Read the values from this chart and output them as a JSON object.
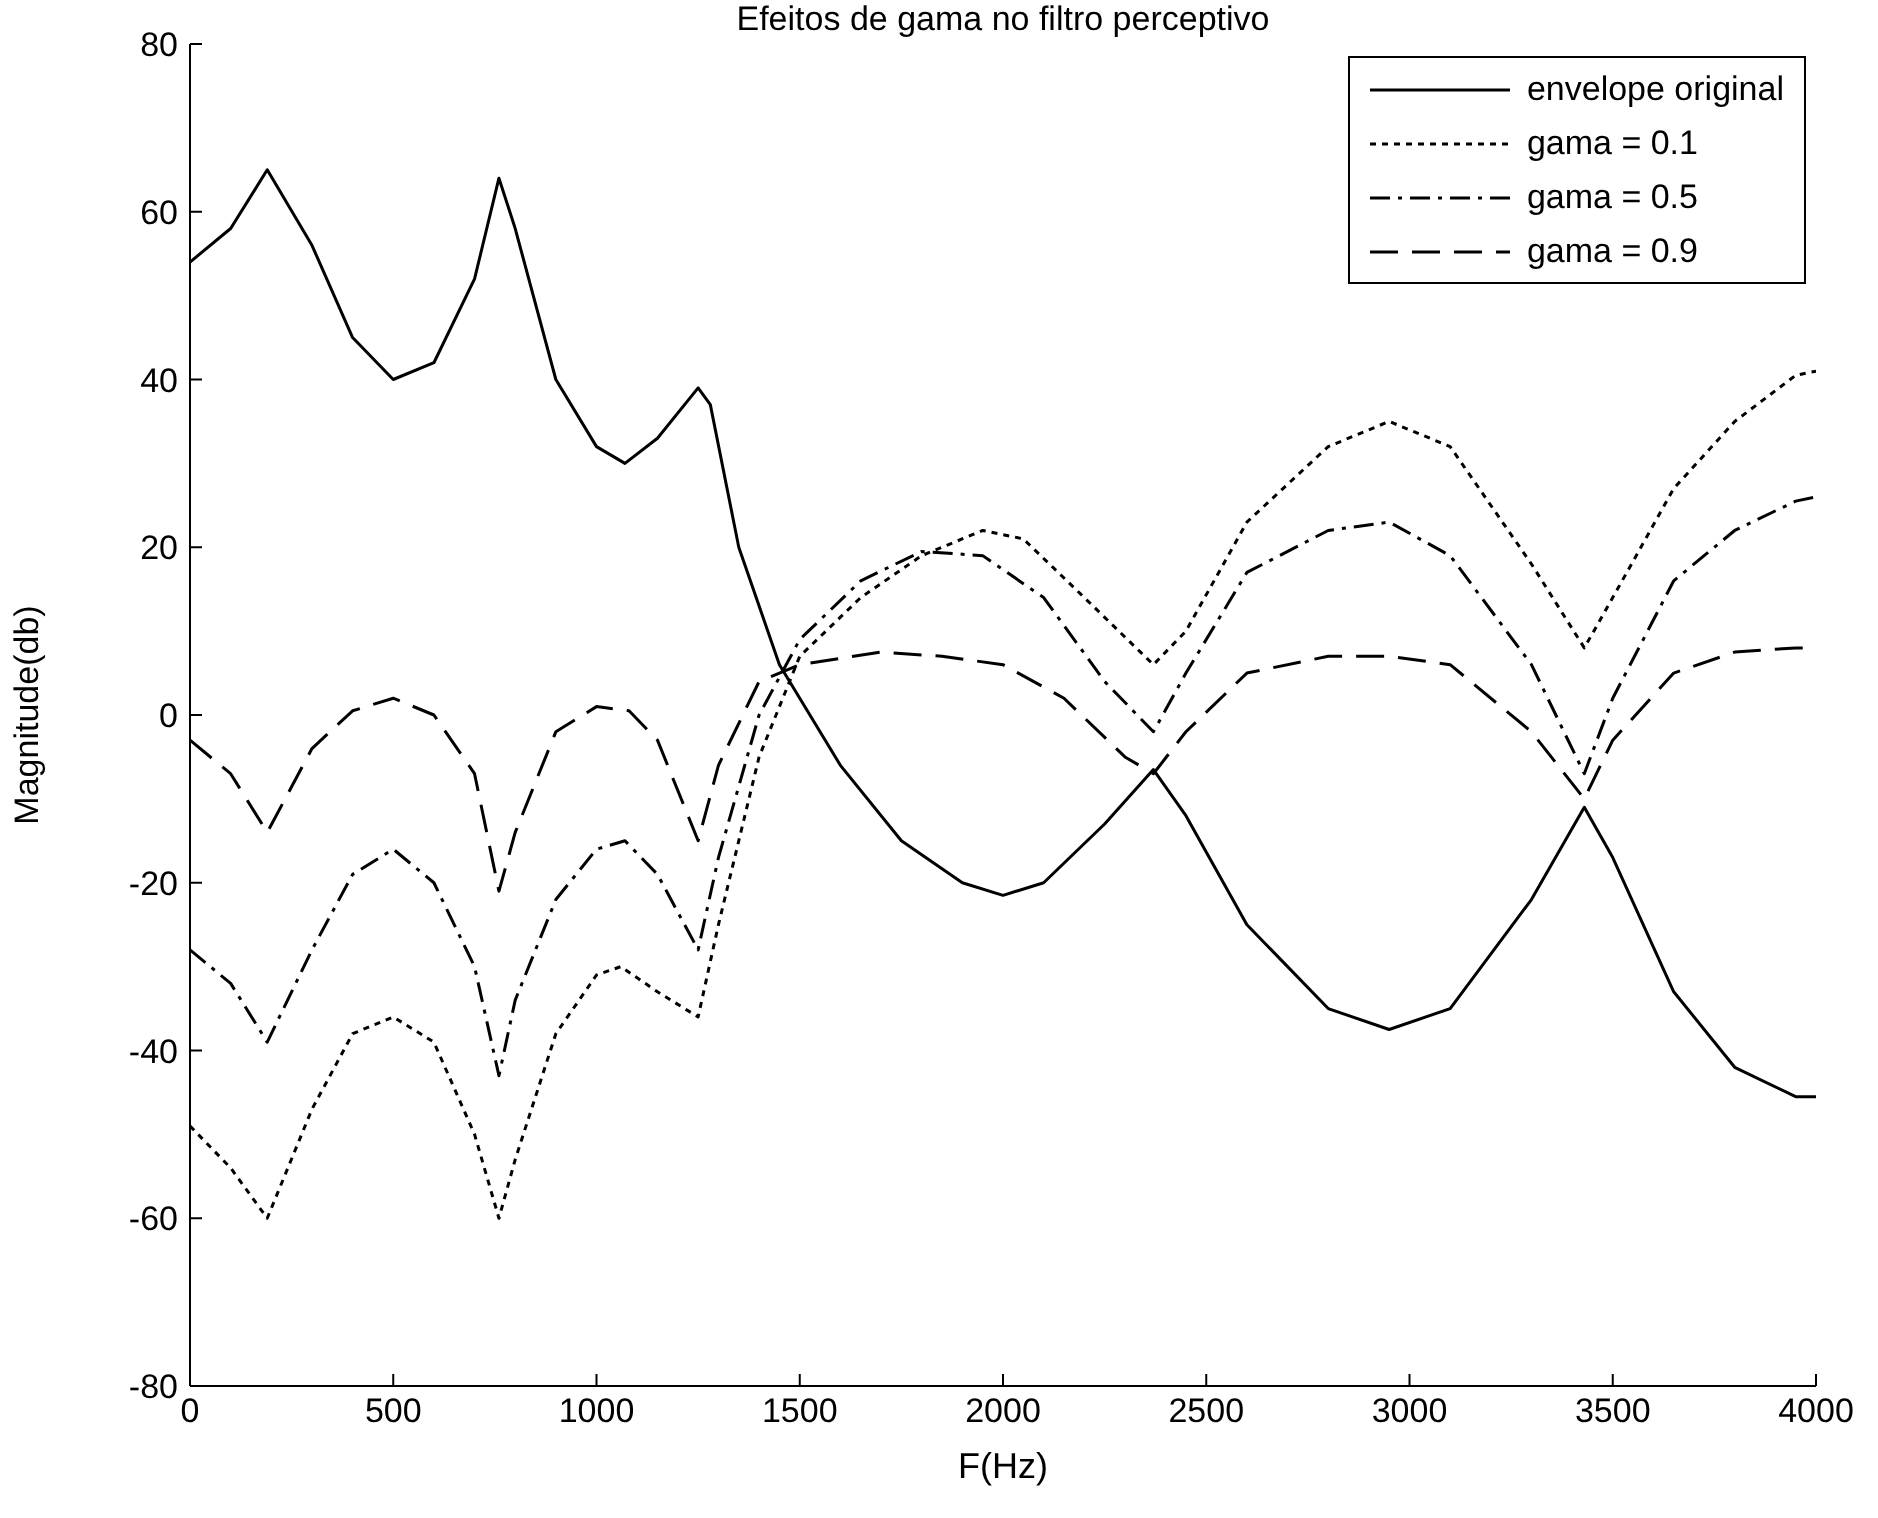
{
  "chart_data": {
    "type": "line",
    "title": "Efeitos de gama no filtro perceptivo",
    "xlabel": "F(Hz)",
    "ylabel": "Magnitude(db)",
    "xlim": [
      0,
      4000
    ],
    "ylim": [
      -80,
      80
    ],
    "xticks": [
      0,
      500,
      1000,
      1500,
      2000,
      2500,
      3000,
      3500,
      4000
    ],
    "yticks": [
      -80,
      -60,
      -40,
      -20,
      0,
      20,
      40,
      60,
      80
    ],
    "legend": "top right",
    "marker": "none",
    "series": [
      {
        "name": "envelope original",
        "color": "#000000",
        "line_style": "solid",
        "x": [
          0,
          100,
          190,
          300,
          400,
          500,
          600,
          700,
          760,
          800,
          900,
          1000,
          1070,
          1150,
          1250,
          1280,
          1350,
          1450,
          1500,
          1600,
          1750,
          1900,
          2000,
          2100,
          2250,
          2370,
          2450,
          2600,
          2800,
          2950,
          3100,
          3300,
          3430,
          3500,
          3650,
          3800,
          3950,
          4000
        ],
        "values": [
          54,
          58,
          65,
          56,
          45,
          40,
          42,
          52,
          64,
          58,
          40,
          32,
          30,
          33,
          39,
          37,
          20,
          6,
          2,
          -6,
          -15,
          -20,
          -21.5,
          -20,
          -13,
          -6.5,
          -12,
          -25,
          -35,
          -37.5,
          -35,
          -22,
          -11,
          -17,
          -33,
          -42,
          -45.5,
          -45.5
        ]
      },
      {
        "name": "gama = 0.1",
        "color": "#000000",
        "line_style": "dotted",
        "x": [
          0,
          100,
          190,
          300,
          400,
          500,
          600,
          700,
          760,
          800,
          900,
          1000,
          1060,
          1150,
          1250,
          1300,
          1400,
          1500,
          1650,
          1800,
          1950,
          2050,
          2200,
          2370,
          2450,
          2600,
          2800,
          2950,
          3100,
          3300,
          3430,
          3500,
          3650,
          3800,
          3950,
          4000
        ],
        "values": [
          -49,
          -54,
          -60,
          -47,
          -38,
          -36,
          -39,
          -50,
          -60,
          -53,
          -38,
          -31,
          -30,
          -33,
          -36,
          -25,
          -5,
          7,
          14,
          19,
          22,
          21,
          14,
          6,
          10,
          23,
          32,
          35,
          32,
          18,
          8,
          14,
          27,
          35,
          40.5,
          41
        ]
      },
      {
        "name": "gama = 0.5",
        "color": "#000000",
        "line_style": "dashdot",
        "x": [
          0,
          100,
          190,
          300,
          400,
          500,
          600,
          700,
          760,
          800,
          900,
          1000,
          1070,
          1150,
          1250,
          1300,
          1400,
          1500,
          1650,
          1800,
          1950,
          2100,
          2250,
          2370,
          2450,
          2600,
          2800,
          2950,
          3100,
          3300,
          3430,
          3500,
          3650,
          3800,
          3950,
          4000
        ],
        "values": [
          -28,
          -32,
          -39,
          -28,
          -19,
          -16,
          -20,
          -30,
          -43,
          -34,
          -22,
          -16,
          -15,
          -19,
          -28,
          -17,
          0,
          9,
          16,
          19.5,
          19,
          14,
          4,
          -2,
          5,
          17,
          22,
          23,
          19,
          6,
          -7,
          2,
          16,
          22,
          25.5,
          26
        ]
      },
      {
        "name": "gama = 0.9",
        "color": "#000000",
        "line_style": "dashed",
        "x": [
          0,
          100,
          190,
          300,
          400,
          500,
          600,
          700,
          760,
          800,
          900,
          1000,
          1080,
          1150,
          1250,
          1300,
          1400,
          1500,
          1700,
          1850,
          2000,
          2150,
          2300,
          2370,
          2450,
          2600,
          2800,
          2950,
          3100,
          3300,
          3430,
          3500,
          3650,
          3800,
          3950,
          4000
        ],
        "values": [
          -3,
          -7,
          -14,
          -4,
          0.5,
          2,
          0,
          -7,
          -21,
          -14,
          -2,
          1,
          0.5,
          -3,
          -15,
          -6,
          4,
          6,
          7.5,
          7,
          6,
          2,
          -5,
          -7,
          -2,
          5,
          7,
          7,
          6,
          -2,
          -10,
          -3,
          5,
          7.5,
          8,
          8
        ]
      }
    ]
  }
}
